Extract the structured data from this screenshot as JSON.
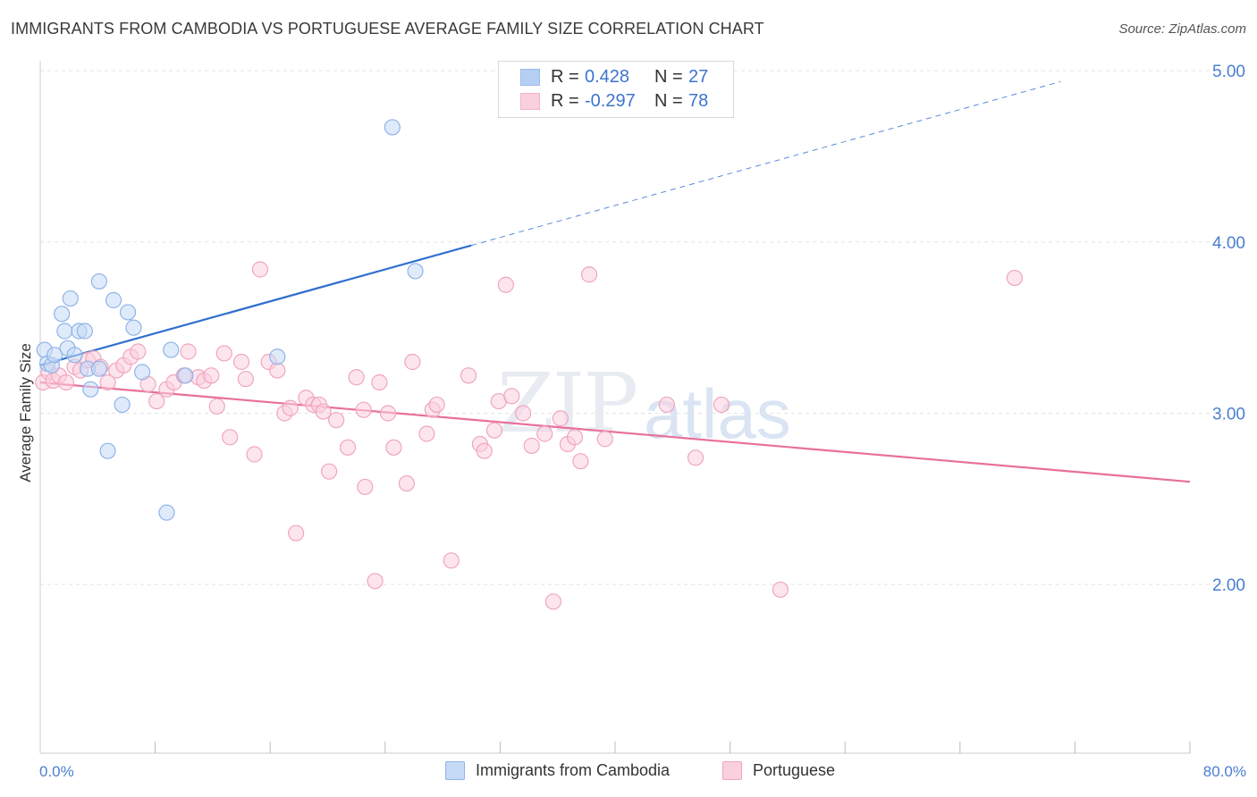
{
  "header": {
    "title": "IMMIGRANTS FROM CAMBODIA VS PORTUGUESE AVERAGE FAMILY SIZE CORRELATION CHART",
    "source": "Source: ZipAtlas.com"
  },
  "watermark": {
    "zip": "ZIP",
    "atlas": "atlas"
  },
  "legend_top": {
    "rows": [
      {
        "r_label": "R =",
        "r_value": "0.428",
        "n_label": "N =",
        "n_value": "27",
        "color": "#9dbff0",
        "border": "#7aa6e6"
      },
      {
        "r_label": "R =",
        "r_value": "-0.297",
        "n_label": "N =",
        "n_value": "78",
        "color": "#f7c1d2",
        "border": "#ee9ab6"
      }
    ]
  },
  "legend_bottom": [
    {
      "label": "Immigrants from Cambodia",
      "color": "#c5daf6",
      "border": "#8fb3e8"
    },
    {
      "label": "Portuguese",
      "color": "#fbd0de",
      "border": "#f0a5bf"
    }
  ],
  "chart_data": {
    "type": "scatter",
    "title": "IMMIGRANTS FROM CAMBODIA VS PORTUGUESE AVERAGE FAMILY SIZE CORRELATION CHART",
    "xlabel": "",
    "ylabel": "Average Family Size",
    "xlim": [
      0,
      80
    ],
    "ylim": [
      1.0,
      5.15
    ],
    "x_tick_labels": [
      "0.0%",
      "80.0%"
    ],
    "y_ticks": [
      2.0,
      3.0,
      4.0,
      5.0
    ],
    "y_tick_labels": [
      "2.00",
      "3.00",
      "4.00",
      "5.00"
    ],
    "grid": true,
    "legend": "top-center",
    "series": [
      {
        "name": "Immigrants from Cambodia",
        "color": "#8fb3e8",
        "fill": "#c5daf6",
        "trend_color": "#2f6fd0",
        "trend": {
          "x0": 0.0,
          "y0": 3.28,
          "x1": 30.0,
          "y1": 3.98,
          "x_ext": 71.0
        },
        "points": [
          [
            0.3,
            3.37
          ],
          [
            0.5,
            3.29
          ],
          [
            0.8,
            3.28
          ],
          [
            1.0,
            3.34
          ],
          [
            1.5,
            3.58
          ],
          [
            1.7,
            3.48
          ],
          [
            1.9,
            3.38
          ],
          [
            2.1,
            3.67
          ],
          [
            2.4,
            3.34
          ],
          [
            2.7,
            3.48
          ],
          [
            3.1,
            3.48
          ],
          [
            3.3,
            3.26
          ],
          [
            3.5,
            3.14
          ],
          [
            4.1,
            3.26
          ],
          [
            4.1,
            3.77
          ],
          [
            4.7,
            2.78
          ],
          [
            5.1,
            3.66
          ],
          [
            5.7,
            3.05
          ],
          [
            6.1,
            3.59
          ],
          [
            6.5,
            3.5
          ],
          [
            7.1,
            3.24
          ],
          [
            8.8,
            2.42
          ],
          [
            9.1,
            3.37
          ],
          [
            10.1,
            3.22
          ],
          [
            16.5,
            3.33
          ],
          [
            24.5,
            4.67
          ],
          [
            26.1,
            3.83
          ]
        ]
      },
      {
        "name": "Portuguese",
        "color": "#f0a5bf",
        "fill": "#fbd0de",
        "trend_color": "#e8709a",
        "trend": {
          "x0": 0.0,
          "y0": 3.18,
          "x1": 80.0,
          "y1": 2.6
        },
        "points": [
          [
            0.2,
            3.18
          ],
          [
            0.6,
            3.24
          ],
          [
            0.9,
            3.19
          ],
          [
            1.3,
            3.22
          ],
          [
            1.8,
            3.18
          ],
          [
            2.4,
            3.27
          ],
          [
            2.8,
            3.25
          ],
          [
            3.3,
            3.31
          ],
          [
            3.7,
            3.32
          ],
          [
            4.2,
            3.27
          ],
          [
            4.7,
            3.18
          ],
          [
            5.3,
            3.25
          ],
          [
            5.8,
            3.28
          ],
          [
            6.3,
            3.33
          ],
          [
            6.8,
            3.36
          ],
          [
            7.5,
            3.17
          ],
          [
            8.1,
            3.07
          ],
          [
            8.8,
            3.14
          ],
          [
            9.3,
            3.18
          ],
          [
            10.0,
            3.22
          ],
          [
            10.3,
            3.36
          ],
          [
            11.0,
            3.21
          ],
          [
            11.4,
            3.19
          ],
          [
            11.9,
            3.22
          ],
          [
            12.3,
            3.04
          ],
          [
            12.8,
            3.35
          ],
          [
            13.2,
            2.86
          ],
          [
            14.0,
            3.3
          ],
          [
            14.3,
            3.2
          ],
          [
            14.9,
            2.76
          ],
          [
            15.3,
            3.84
          ],
          [
            15.9,
            3.3
          ],
          [
            16.5,
            3.25
          ],
          [
            17.0,
            3.0
          ],
          [
            17.4,
            3.03
          ],
          [
            17.8,
            2.3
          ],
          [
            18.5,
            3.09
          ],
          [
            19.0,
            3.05
          ],
          [
            19.4,
            3.05
          ],
          [
            19.7,
            3.01
          ],
          [
            20.1,
            2.66
          ],
          [
            20.6,
            2.96
          ],
          [
            21.4,
            2.8
          ],
          [
            22.0,
            3.21
          ],
          [
            22.5,
            3.02
          ],
          [
            22.6,
            2.57
          ],
          [
            23.3,
            2.02
          ],
          [
            23.6,
            3.18
          ],
          [
            24.2,
            3.0
          ],
          [
            24.6,
            2.8
          ],
          [
            25.5,
            2.59
          ],
          [
            25.9,
            3.3
          ],
          [
            26.9,
            2.88
          ],
          [
            27.3,
            3.02
          ],
          [
            27.6,
            3.05
          ],
          [
            28.6,
            2.14
          ],
          [
            29.8,
            3.22
          ],
          [
            30.6,
            2.82
          ],
          [
            30.9,
            2.78
          ],
          [
            31.6,
            2.9
          ],
          [
            31.9,
            3.07
          ],
          [
            32.4,
            3.75
          ],
          [
            32.8,
            3.1
          ],
          [
            33.6,
            3.0
          ],
          [
            34.2,
            2.81
          ],
          [
            35.1,
            2.88
          ],
          [
            35.7,
            1.9
          ],
          [
            36.2,
            2.97
          ],
          [
            36.7,
            2.82
          ],
          [
            37.2,
            2.86
          ],
          [
            37.6,
            2.72
          ],
          [
            38.2,
            3.81
          ],
          [
            39.3,
            2.85
          ],
          [
            43.6,
            3.05
          ],
          [
            45.6,
            2.74
          ],
          [
            47.4,
            3.05
          ],
          [
            51.5,
            1.97
          ],
          [
            67.8,
            3.79
          ]
        ]
      }
    ]
  }
}
